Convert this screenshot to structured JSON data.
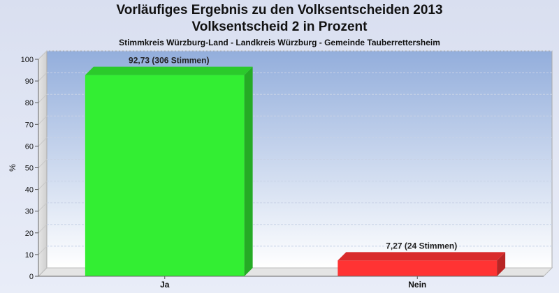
{
  "header": {
    "title": "Vorläufiges Ergebnis zu den Volksentscheiden 2013",
    "subtitle": "Volksentscheid 2 in Prozent",
    "region": "Stimmkreis Würzburg-Land - Landkreis Würzburg - Gemeinde Tauberrettersheim"
  },
  "chart_data": {
    "type": "bar",
    "categories": [
      "Ja",
      "Nein"
    ],
    "values": [
      92.73,
      7.27
    ],
    "data_labels": [
      "92,73 (306 Stimmen)",
      "7,27 (24 Stimmen)"
    ],
    "colors": [
      "#33ee33",
      "#ff3333"
    ],
    "ylabel": "%",
    "ylim": [
      0,
      100
    ],
    "yticks": [
      0,
      10,
      20,
      30,
      40,
      50,
      60,
      70,
      80,
      90,
      100
    ],
    "grid": true
  }
}
